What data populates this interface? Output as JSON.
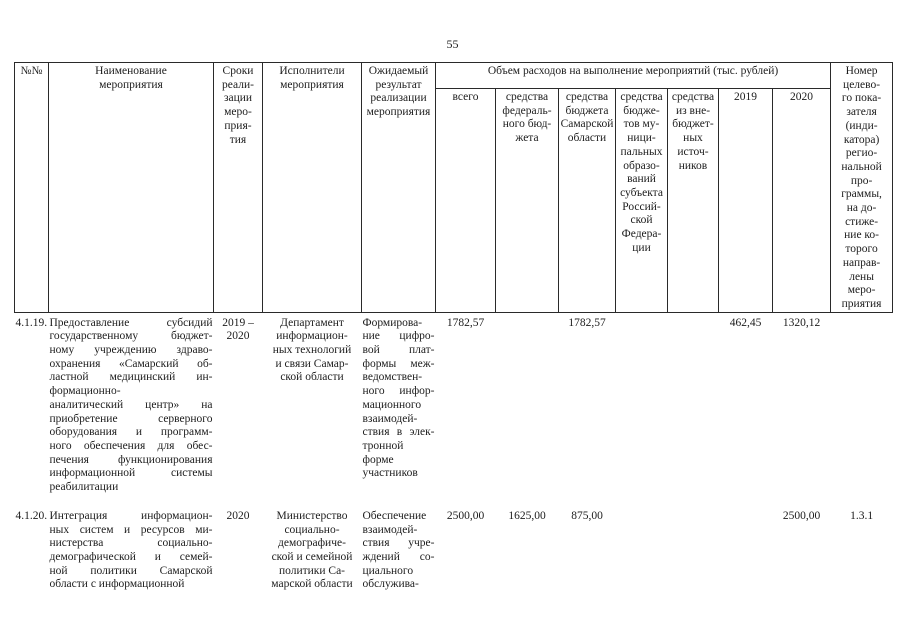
{
  "page": {
    "number": "55"
  },
  "table": {
    "header": {
      "col_num": "№№",
      "col_name": "Наименование\nмероприятия",
      "col_period": "Сроки\nреали-\nзации\nмеро-\nприя-\nтия",
      "col_executors": "Исполнители\nмероприятия",
      "col_result": "Ожидаемый\nрезультат\nреализации\nмероприятия",
      "col_expenses_group": "Объем расходов на выполнение мероприятий (тыс. рублей)",
      "col_total": "всего",
      "col_federal": "средства\nфедераль-\nного бюд-\nжета",
      "col_regional": "средства\nбюджета\nСамарской\nобласти",
      "col_municipal": "средства\nбюдже-\nтов му-\nници-\nпальных\nобразо-\nваний\nсубъекта\nРоссий-\nской\nФедера-\nции",
      "col_extrabudget": "средства\nиз вне-\nбюджет-\nных\nисточ-\nников",
      "col_2019": "2019",
      "col_2020": "2020",
      "col_indicator": "Номер\nцелево-\nго пока-\nзателя\n(инди-\nкатора)\nрегио-\nнальной\nпро-\nграммы,\nна до-\nстиже-\nние ко-\nторого\nнаправ-\nлены\nмеро-\nприятия"
    },
    "rows": [
      {
        "num": "4.1.19.",
        "name": "Предоставление субсидий\nгосударственному бюджет-\nному учреждению здраво-\nохранения «Самарский об-\nластной медицинский ин-\nформационно-\nаналитический центр» на\nприобретение серверного\nоборудования и программ-\nного обеспечения для обес-\nпечения функционирования\nинформационной системы\nреабилитации",
        "period": "2019 –\n2020",
        "executors": "Департамент\nинформацион-\nных технологий\nи связи Самар-\nской области",
        "result": "Формирова-\nние цифро-\nвой плат-\nформы меж-\nведомствен-\nного инфор-\nмационного\nвзаимодей-\nствия в элек-\nтронной\nформе\nучастников",
        "total": "1782,57",
        "federal": "",
        "regional": "1782,57",
        "municipal": "",
        "extrabudget": "",
        "y2019": "462,45",
        "y2020": "1320,12",
        "indicator": ""
      },
      {
        "num": "4.1.20.",
        "name": "Интеграция информацион-\nных систем и ресурсов ми-\nнистерства социально-\nдемографической и семей-\nной политики Самарской\nобласти с информационной",
        "period": "2020",
        "executors": "Министерство\nсоциально-\nдемографиче-\nской и семейной\nполитики Са-\nмарской области",
        "result": "Обеспечение\nвзаимодей-\nствия учре-\nждений со-\nциального\nобслужива-",
        "total": "2500,00",
        "federal": "1625,00",
        "regional": "875,00",
        "municipal": "",
        "extrabudget": "",
        "y2019": "",
        "y2020": "2500,00",
        "indicator": "1.3.1"
      }
    ]
  }
}
